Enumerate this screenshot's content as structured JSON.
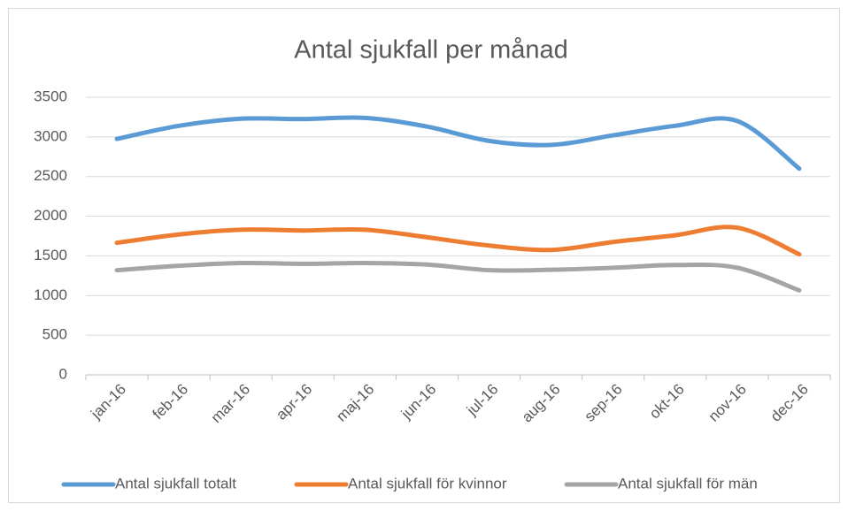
{
  "chart_data": {
    "type": "line",
    "title": "Antal sjukfall per månad",
    "categories": [
      "jan-16",
      "feb-16",
      "mar-16",
      "apr-16",
      "maj-16",
      "jun-16",
      "jul-16",
      "aug-16",
      "sep-16",
      "okt-16",
      "nov-16",
      "dec-16"
    ],
    "series": [
      {
        "name": "Antal sjukfall totalt",
        "color": "#5b9bd5",
        "values": [
          2975,
          3140,
          3230,
          3225,
          3240,
          3130,
          2950,
          2900,
          3020,
          3140,
          3200,
          2600
        ]
      },
      {
        "name": "Antal sjukfall för kvinnor",
        "color": "#ed7d31",
        "values": [
          1665,
          1770,
          1830,
          1820,
          1830,
          1735,
          1630,
          1575,
          1675,
          1760,
          1855,
          1520
        ]
      },
      {
        "name": "Antal sjukfall för män",
        "color": "#a5a5a5",
        "values": [
          1320,
          1375,
          1410,
          1400,
          1410,
          1390,
          1320,
          1325,
          1350,
          1385,
          1350,
          1065
        ]
      }
    ],
    "ylim": [
      0,
      3500
    ],
    "yticks": [
      0,
      500,
      1000,
      1500,
      2000,
      2500,
      3000,
      3500
    ],
    "grid": true,
    "legend": "bottom"
  }
}
